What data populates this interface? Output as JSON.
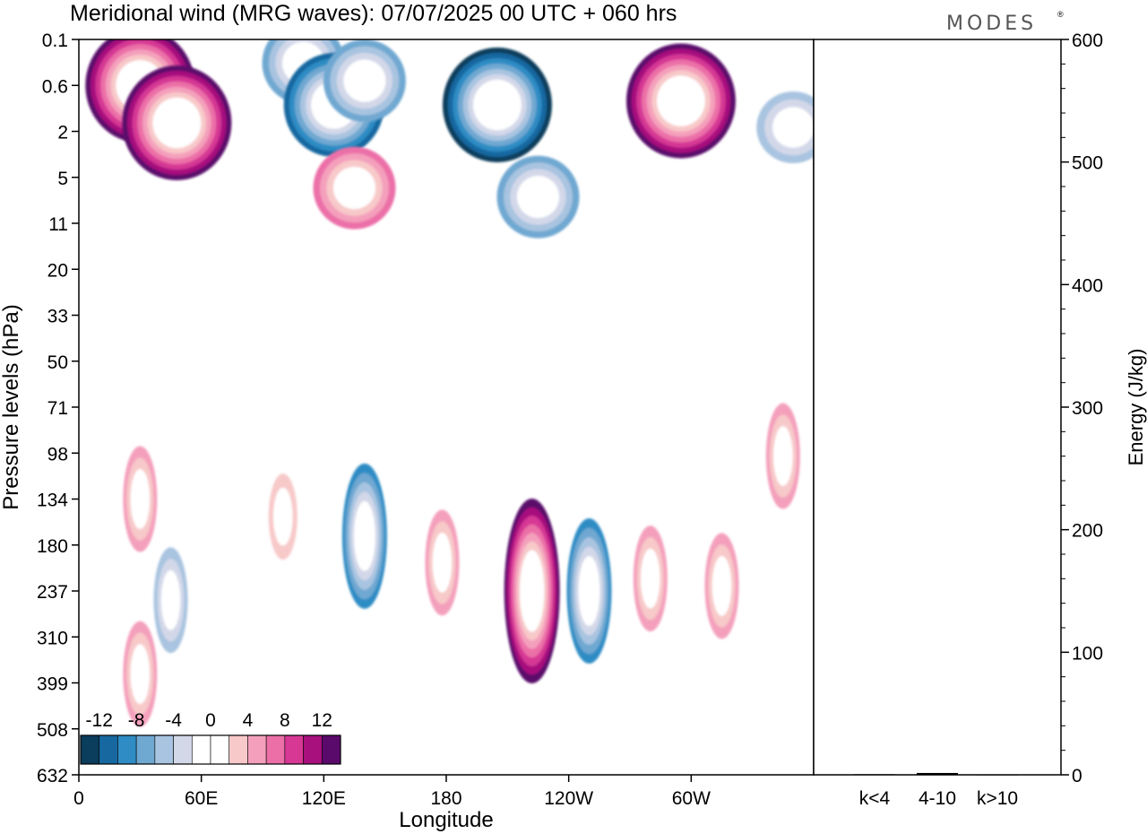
{
  "chart_data": {
    "type": "heatmap",
    "title": "Meridional wind (MRG waves):  07/07/2025  00 UTC  + 060 hrs",
    "brand": "MODES",
    "brand_mark": "®",
    "xlabel": "Longitude",
    "ylabel": "Pressure levels (hPa)",
    "x_ticks": [
      "0",
      "60E",
      "120E",
      "180",
      "120W",
      "60W"
    ],
    "x_tick_degrees": [
      0,
      60,
      120,
      180,
      240,
      300
    ],
    "x_range_degrees": [
      0,
      360
    ],
    "pressure_levels": [
      "0.1",
      "0.6",
      "2",
      "5",
      "11",
      "20",
      "33",
      "50",
      "71",
      "98",
      "134",
      "180",
      "237",
      "310",
      "399",
      "508",
      "632"
    ],
    "colorbar": {
      "tick_labels": [
        "-12",
        "-8",
        "-4",
        "0",
        "4",
        "8",
        "12"
      ],
      "colors": [
        "#0b3d5c",
        "#1768a0",
        "#2f8cc4",
        "#6fa8d1",
        "#a9c4e0",
        "#d3d8e9",
        "#ffffff",
        "#ffffff",
        "#f8c9c9",
        "#f4a0bc",
        "#ec6fa8",
        "#d63894",
        "#a8107e",
        "#5a0a6b"
      ]
    },
    "contour_features": [
      {
        "lon": 30,
        "level": 0.6,
        "value": 14
      },
      {
        "lon": 48,
        "level": 1.6,
        "value": 14
      },
      {
        "lon": 110,
        "level": 0.25,
        "value": -7
      },
      {
        "lon": 125,
        "level": 1.0,
        "value": -11
      },
      {
        "lon": 140,
        "level": 0.5,
        "value": -8
      },
      {
        "lon": 205,
        "level": 1.0,
        "value": -14
      },
      {
        "lon": 295,
        "level": 0.9,
        "value": 14
      },
      {
        "lon": 350,
        "level": 1.8,
        "value": -6
      },
      {
        "lon": 135,
        "level": 6.0,
        "value": 7
      },
      {
        "lon": 225,
        "level": 7.0,
        "value": -7
      },
      {
        "lon": 30,
        "level": 134,
        "value": 5
      },
      {
        "lon": 140,
        "level": 170,
        "value": -9
      },
      {
        "lon": 178,
        "level": 200,
        "value": 5
      },
      {
        "lon": 222,
        "level": 237,
        "value": 13
      },
      {
        "lon": 250,
        "level": 237,
        "value": -9
      },
      {
        "lon": 280,
        "level": 220,
        "value": 5
      },
      {
        "lon": 315,
        "level": 230,
        "value": 6
      },
      {
        "lon": 345,
        "level": 100,
        "value": 6
      },
      {
        "lon": 100,
        "level": 150,
        "value": 4
      },
      {
        "lon": 45,
        "level": 250,
        "value": -5
      },
      {
        "lon": 30,
        "level": 380,
        "value": 5
      }
    ],
    "energy_panel": {
      "ylabel": "Energy (J/kg)",
      "yticks": [
        "0",
        "100",
        "200",
        "300",
        "400",
        "500",
        "600"
      ],
      "ylim": [
        0,
        600
      ],
      "categories": [
        "k<4",
        "4-10",
        "k>10"
      ],
      "values": [
        0.5,
        1.5,
        0.3
      ]
    }
  }
}
